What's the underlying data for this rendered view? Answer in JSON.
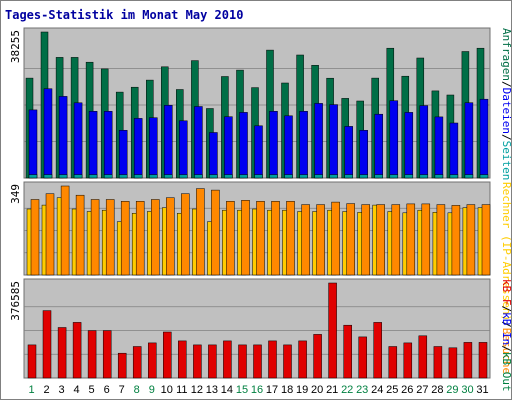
{
  "chart_data": {
    "title": "Tages-Statistik im Monat May 2010",
    "type": "bar",
    "days": [
      "1",
      "2",
      "3",
      "4",
      "5",
      "6",
      "7",
      "8",
      "9",
      "10",
      "11",
      "12",
      "13",
      "14",
      "15",
      "16",
      "17",
      "18",
      "19",
      "20",
      "21",
      "22",
      "23",
      "24",
      "25",
      "26",
      "27",
      "28",
      "29",
      "30",
      "31"
    ],
    "weekend_days": [
      1,
      8,
      9,
      15,
      16,
      22,
      23,
      29,
      30
    ],
    "colors": {
      "background": "#c0c0c0",
      "weekday_label": "#000000",
      "weekend_label": "#008040",
      "anfragen": "#006e46",
      "dateien": "#0000f0",
      "besuche": "#ff8800",
      "rechner": "#ffcc00",
      "kb_in": "#e00000",
      "kb_out": "#ff8888",
      "title": "#0000a0",
      "border": "#a0a0a0"
    },
    "panels": [
      {
        "ytick": "38255",
        "ymax": 38255,
        "legend": [
          {
            "text": "Anfragen",
            "color": "#006e46"
          },
          {
            "sep": "/",
            "color": "#000000"
          },
          {
            "text": "Dateien",
            "color": "#0000f0"
          },
          {
            "sep": "/",
            "color": "#000000"
          },
          {
            "text": "Seiten",
            "color": "#00a0a0"
          }
        ],
        "series": [
          {
            "name": "Anfragen",
            "color": "#006e46",
            "values": [
              26180,
              38255,
              31600,
              31600,
              30340,
              28590,
              22500,
              23780,
              25640,
              29140,
              23180,
              30770,
              18220,
              26600,
              28270,
              23680,
              33520,
              24880,
              32220,
              29530,
              26160,
              20850,
              20180,
              26180,
              34000,
              26680,
              31450,
              22810,
              21740,
              33150,
              34000
            ]
          },
          {
            "name": "Dateien",
            "color": "#0000f0",
            "values": [
              17850,
              23410,
              21370,
              19700,
              17470,
              17470,
              12500,
              15620,
              15790,
              19040,
              15000,
              18740,
              11920,
              16050,
              17180,
              13690,
              17470,
              16290,
              17470,
              19550,
              19220,
              13520,
              12500,
              16720,
              20250,
              17180,
              18960,
              16000,
              14400,
              19720,
              20660
            ]
          },
          {
            "name": "Seiten",
            "color": "#00a0a0",
            "values": [
              900,
              900,
              900,
              900,
              900,
              900,
              900,
              900,
              900,
              900,
              900,
              900,
              900,
              900,
              900,
              900,
              900,
              900,
              900,
              900,
              900,
              900,
              900,
              900,
              900,
              900,
              900,
              900,
              900,
              900,
              900
            ]
          }
        ]
      },
      {
        "ytick": "349",
        "ymax": 349,
        "legend": [
          {
            "text": "Rechner (IP-Adressen)",
            "color": "#ffcc00"
          },
          {
            "sep": "/",
            "color": "#000000"
          },
          {
            "text": "Besuche",
            "color": "#ff8800"
          }
        ],
        "series": [
          {
            "name": "Rechner",
            "color": "#ffcc00",
            "values": [
              259,
              274,
              303,
              259,
              249,
              254,
              209,
              242,
              249,
              264,
              242,
              259,
              209,
              254,
              254,
              259,
              254,
              254,
              249,
              249,
              254,
              249,
              246,
              274,
              249,
              244,
              254,
              246,
              244,
              264,
              264
            ]
          },
          {
            "name": "Besuche",
            "color": "#ff8800",
            "values": [
              296,
              319,
              349,
              313,
              296,
              296,
              289,
              289,
              296,
              303,
              319,
              339,
              333,
              289,
              293,
              289,
              289,
              289,
              276,
              276,
              286,
              280,
              276,
              276,
              276,
              279,
              279,
              276,
              273,
              276,
              276
            ]
          }
        ]
      },
      {
        "ytick": "376585",
        "ymax": 376585,
        "legend": [
          {
            "text": "kB F",
            "color": "#e00000"
          },
          {
            "sep": "/",
            "color": "#000000"
          },
          {
            "text": "kB In",
            "color": "#0000f0"
          },
          {
            "sep": "/",
            "color": "#000000"
          },
          {
            "text": "kB Out",
            "color": "#008040"
          }
        ],
        "series": [
          {
            "name": "kB F",
            "color": "#e00000",
            "values": [
              131120,
              267130,
              200360,
              220400,
              187900,
              187900,
              98240,
              124850,
              139100,
              182200,
              146890,
              131120,
              131120,
              146890,
              131120,
              131120,
              146890,
              131120,
              146890,
              172990,
              376585,
              209340,
              162990,
              220400,
              124850,
              139100,
              167090,
              124850,
              119740,
              141300,
              141300
            ]
          }
        ]
      }
    ]
  }
}
